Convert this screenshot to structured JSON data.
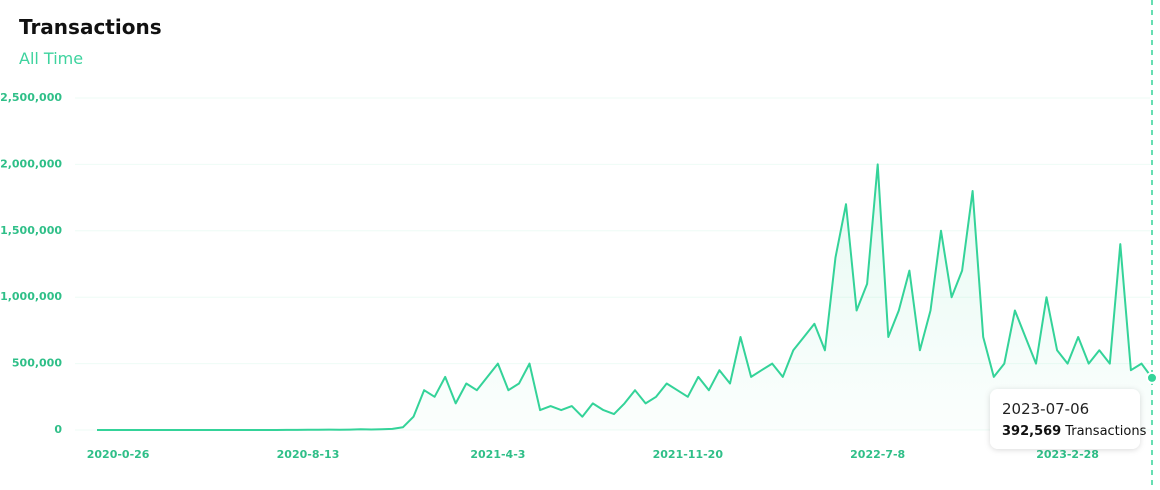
{
  "chart_data": {
    "type": "line",
    "title": "Transactions",
    "subtitle": "All Time",
    "color": "#34d399",
    "values": [
      0,
      0,
      0,
      0,
      0,
      0,
      0,
      0,
      0,
      0,
      0,
      0,
      0,
      0,
      0,
      0,
      0,
      0,
      1000,
      1000,
      2000,
      2000,
      3000,
      2000,
      3000,
      5000,
      4000,
      6000,
      8000,
      20000,
      100000,
      300000,
      250000,
      400000,
      200000,
      350000,
      300000,
      400000,
      500000,
      300000,
      350000,
      500000,
      150000,
      180000,
      150000,
      180000,
      100000,
      200000,
      150000,
      120000,
      200000,
      300000,
      200000,
      250000,
      350000,
      300000,
      250000,
      400000,
      300000,
      450000,
      350000,
      700000,
      400000,
      450000,
      500000,
      400000,
      600000,
      700000,
      800000,
      600000,
      1300000,
      1700000,
      900000,
      1100000,
      2000000,
      700000,
      900000,
      1200000,
      600000,
      900000,
      1500000,
      1000000,
      1200000,
      1800000,
      700000,
      400000,
      500000,
      900000,
      700000,
      500000,
      1000000,
      600000,
      500000,
      700000,
      500000,
      600000,
      500000,
      1400000,
      450000,
      500000,
      392569
    ],
    "xlim": [
      0,
      100
    ],
    "xticks": [
      {
        "value": 2,
        "label": "2020-0-26"
      },
      {
        "value": 20,
        "label": "2020-8-13"
      },
      {
        "value": 38,
        "label": "2021-4-3"
      },
      {
        "value": 56,
        "label": "2021-11-20"
      },
      {
        "value": 74,
        "label": "2022-7-8"
      },
      {
        "value": 92,
        "label": "2023-2-28"
      }
    ],
    "ylim": [
      0,
      2500000
    ],
    "yticks": [
      0,
      {
        "value": 500000,
        "label": "500,000"
      },
      {
        "value": 1000000,
        "label": "1,000,000"
      },
      {
        "value": 1500000,
        "label": "1,500,000"
      },
      {
        "value": 2000000,
        "label": "2,000,000"
      },
      {
        "value": 2500000,
        "label": "2,500,000"
      }
    ],
    "grid": true,
    "tooltip": {
      "date": "2023-07-06",
      "value": 392569,
      "value_label": "392,569",
      "unit": "Transactions"
    }
  }
}
